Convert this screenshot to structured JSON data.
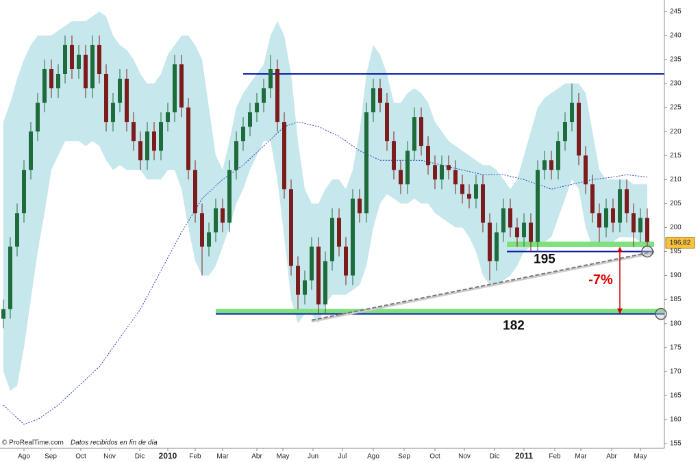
{
  "chart_data": {
    "type": "candlestick",
    "footer": "© ProRealTime.com",
    "footer_note": "Datos recibidos en fin de día",
    "xlim": [
      -0.5,
      96.5
    ],
    "ylim": [
      154,
      247.4
    ],
    "yticks": [
      155,
      160,
      165,
      170,
      175,
      180,
      185,
      190,
      195,
      200,
      205,
      210,
      215,
      220,
      225,
      230,
      235,
      240,
      245
    ],
    "xticks": [
      {
        "value": 3,
        "label": "Ago"
      },
      {
        "value": 6.9,
        "label": "Sep"
      },
      {
        "value": 11.3,
        "label": "Oct"
      },
      {
        "value": 15.5,
        "label": "Nov"
      },
      {
        "value": 19.9,
        "label": "Dic"
      },
      {
        "value": 24,
        "label": "2010",
        "bold": true
      },
      {
        "value": 28,
        "label": "Feb"
      },
      {
        "value": 32,
        "label": "Mar"
      },
      {
        "value": 37,
        "label": "Abr"
      },
      {
        "value": 40.8,
        "label": "May"
      },
      {
        "value": 45.2,
        "label": "Jun"
      },
      {
        "value": 49.5,
        "label": "Jul"
      },
      {
        "value": 54,
        "label": "Ago"
      },
      {
        "value": 58.5,
        "label": "Sep"
      },
      {
        "value": 63,
        "label": "Oct"
      },
      {
        "value": 67.3,
        "label": "Nov"
      },
      {
        "value": 71.7,
        "label": "Dic"
      },
      {
        "value": 76,
        "label": "2011",
        "bold": true
      },
      {
        "value": 80.5,
        "label": "Feb"
      },
      {
        "value": 84.3,
        "label": "Mar"
      },
      {
        "value": 88.8,
        "label": "Abr"
      },
      {
        "value": 93,
        "label": "May"
      }
    ],
    "up_color": "#1e6b3c",
    "down_color": "#7c1c1c",
    "open": [
      181,
      183,
      196,
      203,
      212,
      220,
      226,
      233,
      229,
      232,
      238,
      233,
      236,
      229,
      238,
      232,
      222,
      226,
      231,
      222,
      218,
      214,
      220,
      216,
      222,
      224,
      234,
      225,
      212,
      203,
      196,
      199,
      204,
      201,
      212,
      218,
      221,
      224,
      226,
      229,
      233,
      222,
      208,
      192,
      186,
      189,
      196,
      184,
      193,
      202,
      196,
      190,
      206,
      203,
      224,
      229,
      226,
      218,
      212,
      209,
      216,
      223,
      217,
      213,
      210,
      213,
      212,
      209,
      207,
      206,
      209,
      201,
      193,
      199,
      204,
      200,
      198,
      201,
      197,
      212,
      214,
      212,
      218,
      222,
      226,
      215,
      209,
      203,
      200,
      204,
      201,
      208,
      203,
      199,
      202
    ],
    "high": [
      185,
      198,
      205,
      214,
      222,
      228,
      235,
      235,
      234,
      240,
      240,
      238,
      238,
      240,
      240,
      234,
      228,
      233,
      233,
      224,
      220,
      222,
      222,
      224,
      226,
      236,
      236,
      227,
      214,
      205,
      201,
      206,
      206,
      214,
      220,
      223,
      226,
      228,
      231,
      236,
      235,
      224,
      210,
      194,
      191,
      198,
      198,
      195,
      204,
      204,
      198,
      208,
      208,
      226,
      231,
      231,
      228,
      220,
      214,
      218,
      225,
      225,
      219,
      215,
      215,
      215,
      214,
      211,
      209,
      211,
      211,
      203,
      201,
      206,
      206,
      202,
      203,
      203,
      214,
      216,
      216,
      220,
      224,
      230,
      228,
      217,
      211,
      205,
      206,
      206,
      210,
      210,
      205,
      204,
      204
    ],
    "low": [
      179,
      181,
      194,
      201,
      210,
      218,
      224,
      227,
      227,
      230,
      231,
      231,
      227,
      227,
      230,
      220,
      220,
      224,
      220,
      216,
      212,
      212,
      214,
      214,
      220,
      222,
      223,
      210,
      201,
      190,
      194,
      197,
      199,
      199,
      210,
      216,
      219,
      222,
      224,
      227,
      220,
      206,
      190,
      183,
      184,
      187,
      182,
      182,
      191,
      194,
      188,
      188,
      201,
      201,
      222,
      224,
      216,
      210,
      207,
      207,
      214,
      215,
      211,
      208,
      208,
      210,
      207,
      205,
      204,
      204,
      199,
      189,
      191,
      197,
      198,
      196,
      196,
      195,
      195,
      210,
      210,
      210,
      216,
      220,
      213,
      207,
      201,
      197,
      198,
      199,
      199,
      201,
      196,
      197,
      196
    ],
    "close": [
      183,
      196,
      203,
      212,
      220,
      226,
      233,
      229,
      232,
      238,
      233,
      236,
      229,
      238,
      232,
      222,
      226,
      231,
      222,
      218,
      214,
      220,
      216,
      222,
      224,
      234,
      225,
      212,
      203,
      196,
      199,
      204,
      201,
      212,
      218,
      221,
      224,
      226,
      229,
      233,
      222,
      208,
      192,
      186,
      189,
      196,
      184,
      193,
      202,
      196,
      190,
      206,
      203,
      224,
      229,
      226,
      218,
      212,
      209,
      216,
      223,
      217,
      213,
      210,
      213,
      212,
      209,
      207,
      206,
      209,
      201,
      193,
      199,
      204,
      200,
      198,
      201,
      197,
      212,
      214,
      212,
      218,
      222,
      226,
      215,
      209,
      203,
      200,
      204,
      201,
      208,
      203,
      199,
      202,
      197
    ],
    "band_color": "#c6e7ec",
    "band_upper": [
      222,
      226,
      231,
      235,
      238,
      240,
      240,
      240,
      241,
      242,
      243,
      243,
      243,
      244,
      245,
      244,
      240,
      238,
      237,
      235,
      232,
      230,
      230,
      232,
      236,
      238,
      240,
      240,
      238,
      235,
      225,
      215,
      212,
      218,
      225,
      228,
      230,
      232,
      234,
      240,
      243,
      240,
      232,
      218,
      208,
      205,
      205,
      208,
      210,
      210,
      208,
      212,
      220,
      232,
      238,
      236,
      232,
      226,
      226,
      228,
      229,
      228,
      226,
      222,
      220,
      218,
      217,
      216,
      215,
      214,
      213,
      213,
      212,
      210,
      208,
      210,
      215,
      220,
      225,
      227,
      228,
      229,
      230,
      230,
      230,
      228,
      220,
      212,
      210,
      210,
      210,
      210,
      209,
      209,
      209
    ],
    "band_lower": [
      170,
      166,
      167,
      175,
      185,
      195,
      203,
      212,
      215,
      218,
      218,
      218,
      217,
      218,
      217,
      214,
      212,
      213,
      212,
      212,
      212,
      210,
      210,
      210,
      212,
      212,
      208,
      200,
      193,
      190,
      190,
      192,
      196,
      200,
      205,
      208,
      212,
      215,
      218,
      218,
      210,
      198,
      185,
      180,
      182,
      182,
      180,
      184,
      186,
      186,
      186,
      187,
      188,
      192,
      200,
      205,
      207,
      206,
      205,
      205,
      206,
      205,
      205,
      203,
      202,
      201,
      200,
      200,
      198,
      195,
      190,
      188,
      188,
      189,
      190,
      192,
      195,
      196,
      196,
      197,
      198,
      202,
      206,
      210,
      208,
      200,
      196,
      196,
      196,
      197,
      198,
      198,
      198,
      197,
      196
    ],
    "ma": {
      "color": "#1f3fc4",
      "x": [
        0,
        3,
        5,
        8,
        11,
        14,
        17,
        20,
        23,
        26,
        29,
        32,
        35,
        38,
        41,
        43,
        46,
        49,
        52,
        55,
        58,
        61,
        64,
        67,
        70,
        73,
        76,
        78,
        80,
        83,
        86,
        89,
        91,
        94
      ],
      "values": [
        163,
        159,
        160,
        163,
        167,
        171,
        177,
        183,
        191,
        199,
        206,
        210,
        213,
        217,
        221,
        222,
        221,
        219,
        216,
        214,
        214,
        214,
        213,
        212,
        211,
        211,
        210,
        209,
        208,
        209,
        210,
        210.5,
        211,
        210.5
      ]
    },
    "levels": [
      {
        "value": 232,
        "x_from": 35
      },
      {
        "value": 195,
        "x_from": 73.5,
        "x_to": 95
      },
      {
        "value": 182,
        "x_from": 31
      }
    ],
    "support_bands": [
      {
        "value": 196.5,
        "x_from": 73.5,
        "x_to": 95
      },
      {
        "value": 182.5,
        "x_from": 31
      }
    ],
    "support_color": "#7fe07f",
    "trendline": {
      "x": [
        45,
        95
      ],
      "values": [
        180.7,
        195
      ]
    },
    "gap": {
      "x": 90,
      "from": 196,
      "to": 182,
      "label": "-7%"
    },
    "last_price": {
      "value": 196.82,
      "label": "196,82"
    }
  }
}
